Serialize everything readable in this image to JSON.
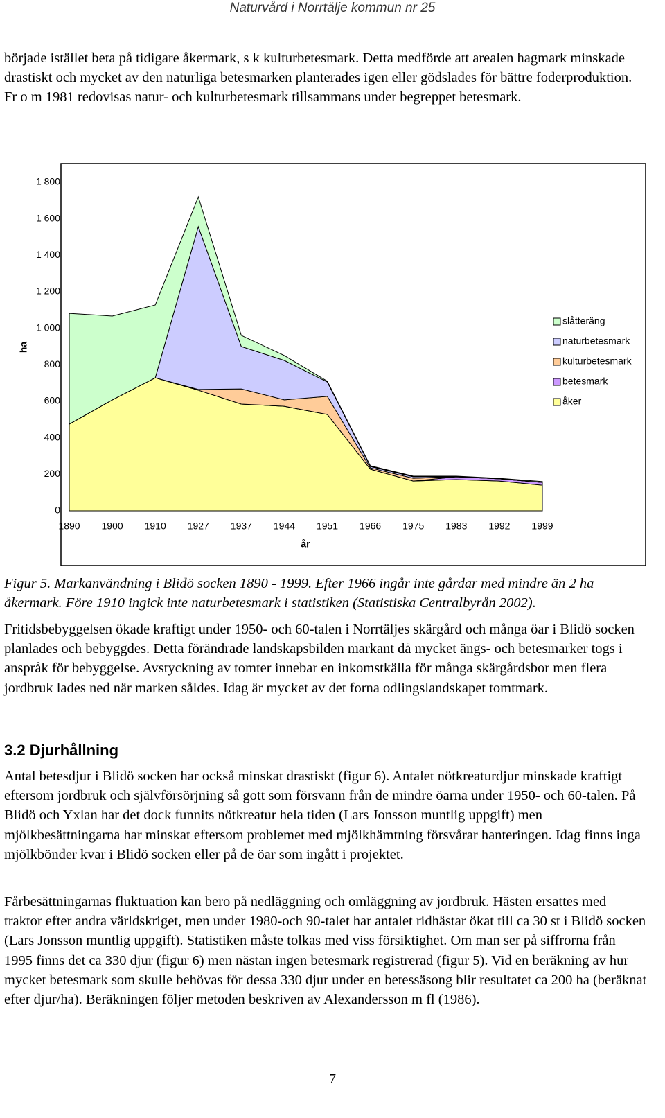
{
  "header": "Naturvård i Norrtälje kommun nr 25",
  "intro": "började istället beta på tidigare åkermark, s k kulturbetesmark. Detta medförde att arealen hagmark minskade drastiskt och mycket av den naturliga betesmarken planterades igen eller gödslades för bättre foderproduktion. Fr o m 1981 redovisas natur- och kulturbetesmark tillsammans under begreppet betesmark.",
  "chart_data": {
    "type": "stacked-area",
    "x_label": "år",
    "y_label": "ha",
    "categories": [
      "1890",
      "1900",
      "1910",
      "1927",
      "1937",
      "1944",
      "1951",
      "1966",
      "1975",
      "1983",
      "1992",
      "1999"
    ],
    "series": [
      {
        "name": "åker",
        "color": "#ffff99",
        "values": [
          475,
          608,
          729,
          661,
          585,
          573,
          528,
          228,
          163,
          171,
          163,
          140
        ]
      },
      {
        "name": "betesmark",
        "color": "#cc99ff",
        "values": [
          0,
          0,
          0,
          0,
          0,
          0,
          0,
          0,
          0,
          15,
          12,
          15
        ]
      },
      {
        "name": "kulturbetesmark",
        "color": "#ffcc99",
        "values": [
          0,
          0,
          0,
          4,
          83,
          35,
          99,
          7,
          15,
          0,
          0,
          0
        ]
      },
      {
        "name": "naturbetesmark",
        "color": "#ccccff",
        "values": [
          0,
          0,
          0,
          892,
          232,
          216,
          79,
          8,
          8,
          0,
          0,
          0
        ]
      },
      {
        "name": "slåtteräng",
        "color": "#ccffcc",
        "values": [
          607,
          459,
          399,
          163,
          61,
          27,
          4,
          4,
          4,
          4,
          3,
          5
        ]
      }
    ],
    "ylim": [
      0,
      1800
    ],
    "yticks": [
      0,
      200,
      400,
      600,
      800,
      {
        "value": 1000,
        "label": "1 000"
      },
      {
        "value": 1200,
        "label": "1 200"
      },
      {
        "value": 1400,
        "label": "1 400"
      },
      {
        "value": 1600,
        "label": "1 600"
      },
      {
        "value": 1800,
        "label": "1 800"
      }
    ],
    "grid": false,
    "legend": "right"
  },
  "caption": "Figur 5. Markanvändning i Blidö socken 1890 - 1999. Efter 1966 ingår inte gårdar med mindre än 2 ha åkermark. Före 1910 ingick inte naturbetesmark i statistiken (Statistiska Centralbyrån 2002).",
  "body": [
    "Fritidsbebyggelsen ökade kraftigt under 1950- och 60-talen i Norrtäljes skärgård och många öar i Blidö socken planlades och bebyggdes. Detta förändrade landskapsbilden markant då mycket ängs- och betesmarker togs i anspråk för bebyggelse. Avstyckning av tomter innebar en inkomstkälla för många skärgårdsbor men flera jordbruk lades ned när marken såldes. Idag är mycket av det forna odlingslandskapet tomtmark."
  ],
  "section": {
    "heading": "3.2 Djurhållning",
    "paragraphs": [
      "Antal betesdjur i Blidö socken har också minskat drastiskt (figur 6). Antalet nötkreaturdjur minskade kraftigt eftersom jordbruk och självförsörjning så gott som försvann från de mindre öarna under 1950- och 60-talen. På Blidö och Yxlan har det dock funnits nötkreatur hela tiden (Lars Jonsson muntlig uppgift) men mjölkbesättningarna har minskat eftersom problemet med mjölkhämtning försvårar hanteringen. Idag finns inga mjölkbönder kvar i Blidö socken eller på de öar som ingått i projektet.",
      "Fårbesättningarnas fluktuation kan bero på nedläggning och omläggning av jordbruk. Hästen ersattes med traktor efter andra världskriget, men under 1980-och 90-talet har antalet ridhästar ökat till ca 30 st i Blidö socken (Lars Jonsson muntlig uppgift). Statistiken måste tolkas med viss försiktighet. Om man ser på siffrorna från 1995 finns det ca 330 djur (figur 6) men nästan ingen betesmark registrerad (figur 5). Vid en beräkning av hur mycket betesmark som skulle behövas för dessa 330 djur under en betessäsong blir resultatet ca 200 ha (beräknat efter djur/ha). Beräkningen följer metoden beskriven av Alexandersson m fl (1986)."
    ]
  },
  "page_number": "7"
}
